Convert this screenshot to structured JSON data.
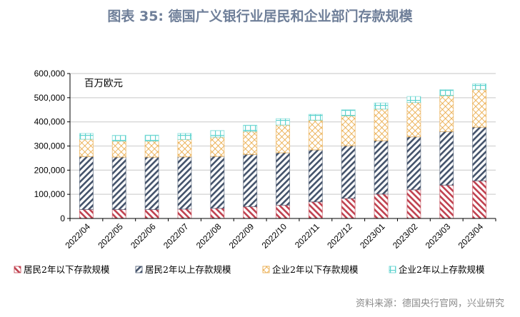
{
  "chart_data": {
    "type": "bar",
    "stacked": true,
    "title": "图表 35: 德国广义银行业居民和企业部门存款规模",
    "unit_label": "百万欧元",
    "source": "资料来源：德国央行官网，兴业研究",
    "ylim": [
      0,
      600000
    ],
    "yticks": [
      "0",
      "100,000",
      "200,000",
      "300,000",
      "400,000",
      "500,000",
      "600,000"
    ],
    "grid": true,
    "legend_position": "bottom",
    "categories": [
      "2022/04",
      "2022/05",
      "2022/06",
      "2022/07",
      "2022/08",
      "2022/09",
      "2022/10",
      "2022/11",
      "2022/12",
      "2023/01",
      "2023/02",
      "2023/03",
      "2023/04"
    ],
    "series": [
      {
        "name": "居民2年以下存款规模",
        "color": "#c0414f",
        "values": [
          37000,
          37000,
          37000,
          39000,
          42000,
          49000,
          55000,
          69000,
          83000,
          101000,
          119000,
          138000,
          156000
        ]
      },
      {
        "name": "居民2年以上存款规模",
        "color": "#44536b",
        "values": [
          219000,
          217000,
          217000,
          216000,
          215000,
          216000,
          217000,
          215000,
          218000,
          221000,
          219000,
          222000,
          222000
        ]
      },
      {
        "name": "企业2年以下存款规模",
        "color": "#e8a43a",
        "values": [
          72000,
          66000,
          66000,
          72000,
          80000,
          95000,
          115000,
          123000,
          124000,
          131000,
          142000,
          149000,
          156000
        ]
      },
      {
        "name": "企业2年以上存款规模",
        "color": "#5fd3cf",
        "values": [
          24000,
          24000,
          25000,
          25000,
          27000,
          26000,
          26000,
          24000,
          25000,
          25000,
          25000,
          24000,
          23000
        ]
      }
    ]
  }
}
